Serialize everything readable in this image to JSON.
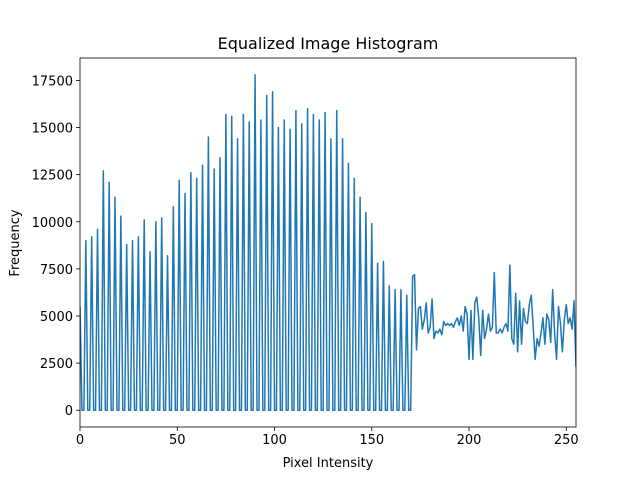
{
  "chart_data": {
    "type": "line",
    "title": "Equalized Image Histogram",
    "xlabel": "Pixel Intensity",
    "ylabel": "Frequency",
    "xlim": [
      0,
      255
    ],
    "ylim": [
      -890,
      18690
    ],
    "xticks": [
      0,
      50,
      100,
      150,
      200,
      250
    ],
    "yticks": [
      0,
      2500,
      5000,
      7500,
      10000,
      12500,
      15000,
      17500
    ],
    "x": [
      0,
      1,
      2,
      3,
      4,
      5,
      6,
      7,
      8,
      9,
      10,
      11,
      12,
      13,
      14,
      15,
      16,
      17,
      18,
      19,
      20,
      21,
      22,
      23,
      24,
      25,
      26,
      27,
      28,
      29,
      30,
      31,
      32,
      33,
      34,
      35,
      36,
      37,
      38,
      39,
      40,
      41,
      42,
      43,
      44,
      45,
      46,
      47,
      48,
      49,
      50,
      51,
      52,
      53,
      54,
      55,
      56,
      57,
      58,
      59,
      60,
      61,
      62,
      63,
      64,
      65,
      66,
      67,
      68,
      69,
      70,
      71,
      72,
      73,
      74,
      75,
      76,
      77,
      78,
      79,
      80,
      81,
      82,
      83,
      84,
      85,
      86,
      87,
      88,
      89,
      90,
      91,
      92,
      93,
      94,
      95,
      96,
      97,
      98,
      99,
      100,
      101,
      102,
      103,
      104,
      105,
      106,
      107,
      108,
      109,
      110,
      111,
      112,
      113,
      114,
      115,
      116,
      117,
      118,
      119,
      120,
      121,
      122,
      123,
      124,
      125,
      126,
      127,
      128,
      129,
      130,
      131,
      132,
      133,
      134,
      135,
      136,
      137,
      138,
      139,
      140,
      141,
      142,
      143,
      144,
      145,
      146,
      147,
      148,
      149,
      150,
      151,
      152,
      153,
      154,
      155,
      156,
      157,
      158,
      159,
      160,
      161,
      162,
      163,
      164,
      165,
      166,
      167,
      168,
      169,
      170,
      171,
      172,
      173,
      174,
      175,
      176,
      177,
      178,
      179,
      180,
      181,
      182,
      183,
      184,
      185,
      186,
      187,
      188,
      189,
      190,
      191,
      192,
      193,
      194,
      195,
      196,
      197,
      198,
      199,
      200,
      201,
      202,
      203,
      204,
      205,
      206,
      207,
      208,
      209,
      210,
      211,
      212,
      213,
      214,
      215,
      216,
      217,
      218,
      219,
      220,
      221,
      222,
      223,
      224,
      225,
      226,
      227,
      228,
      229,
      230,
      231,
      232,
      233,
      234,
      235,
      236,
      237,
      238,
      239,
      240,
      241,
      242,
      243,
      244,
      245,
      246,
      247,
      248,
      249,
      250,
      251,
      252,
      253,
      254,
      255
    ],
    "series": [
      {
        "color": "#1f77b4",
        "values": [
          5500,
          0,
          0,
          9000,
          0,
          0,
          9200,
          0,
          0,
          9600,
          0,
          0,
          12700,
          0,
          0,
          12100,
          0,
          0,
          11300,
          0,
          0,
          10300,
          0,
          0,
          8800,
          0,
          0,
          9000,
          0,
          0,
          9200,
          0,
          0,
          10100,
          0,
          0,
          8400,
          0,
          0,
          10000,
          0,
          0,
          10200,
          0,
          0,
          8200,
          0,
          0,
          10800,
          0,
          0,
          12200,
          0,
          0,
          11500,
          0,
          0,
          12600,
          0,
          0,
          12300,
          0,
          0,
          13000,
          0,
          0,
          14500,
          0,
          0,
          12800,
          0,
          0,
          13400,
          0,
          0,
          15700,
          0,
          0,
          15600,
          0,
          0,
          14400,
          0,
          0,
          15700,
          0,
          0,
          15300,
          0,
          0,
          17800,
          0,
          0,
          15400,
          0,
          0,
          16700,
          0,
          0,
          16900,
          0,
          0,
          15000,
          0,
          0,
          15400,
          0,
          0,
          14900,
          0,
          0,
          15900,
          0,
          0,
          15200,
          0,
          0,
          16000,
          0,
          0,
          15700,
          0,
          0,
          15400,
          0,
          0,
          15800,
          0,
          0,
          14400,
          0,
          0,
          15900,
          0,
          0,
          14400,
          0,
          0,
          13100,
          0,
          0,
          12300,
          0,
          0,
          11300,
          0,
          0,
          10500,
          0,
          0,
          9900,
          0,
          0,
          7800,
          0,
          0,
          7900,
          0,
          0,
          6600,
          0,
          0,
          6400,
          0,
          0,
          6400,
          0,
          0,
          6100,
          0,
          0,
          7100,
          7200,
          3200,
          5400,
          5500,
          4300,
          4800,
          5700,
          4100,
          4400,
          5900,
          3800,
          4200,
          4100,
          4300,
          4000,
          4700,
          4500,
          4600,
          4500,
          4600,
          4400,
          4700,
          4900,
          4500,
          5000,
          4200,
          5500,
          5100,
          2700,
          5300,
          2700,
          5700,
          6000,
          4900,
          2900,
          5300,
          3800,
          4300,
          5100,
          4200,
          4400,
          7300,
          4100,
          4100,
          4300,
          4100,
          4400,
          4600,
          4200,
          7700,
          3800,
          3500,
          6200,
          3100,
          5800,
          3500,
          5400,
          4700,
          4600,
          5600,
          6100,
          4400,
          2700,
          3800,
          3400,
          4100,
          4900,
          3500,
          5100,
          4800,
          3600,
          6400,
          4100,
          2700,
          5500,
          4600,
          3100,
          4800,
          5600,
          4600,
          4900,
          4300,
          5800,
          2300
        ]
      }
    ]
  }
}
